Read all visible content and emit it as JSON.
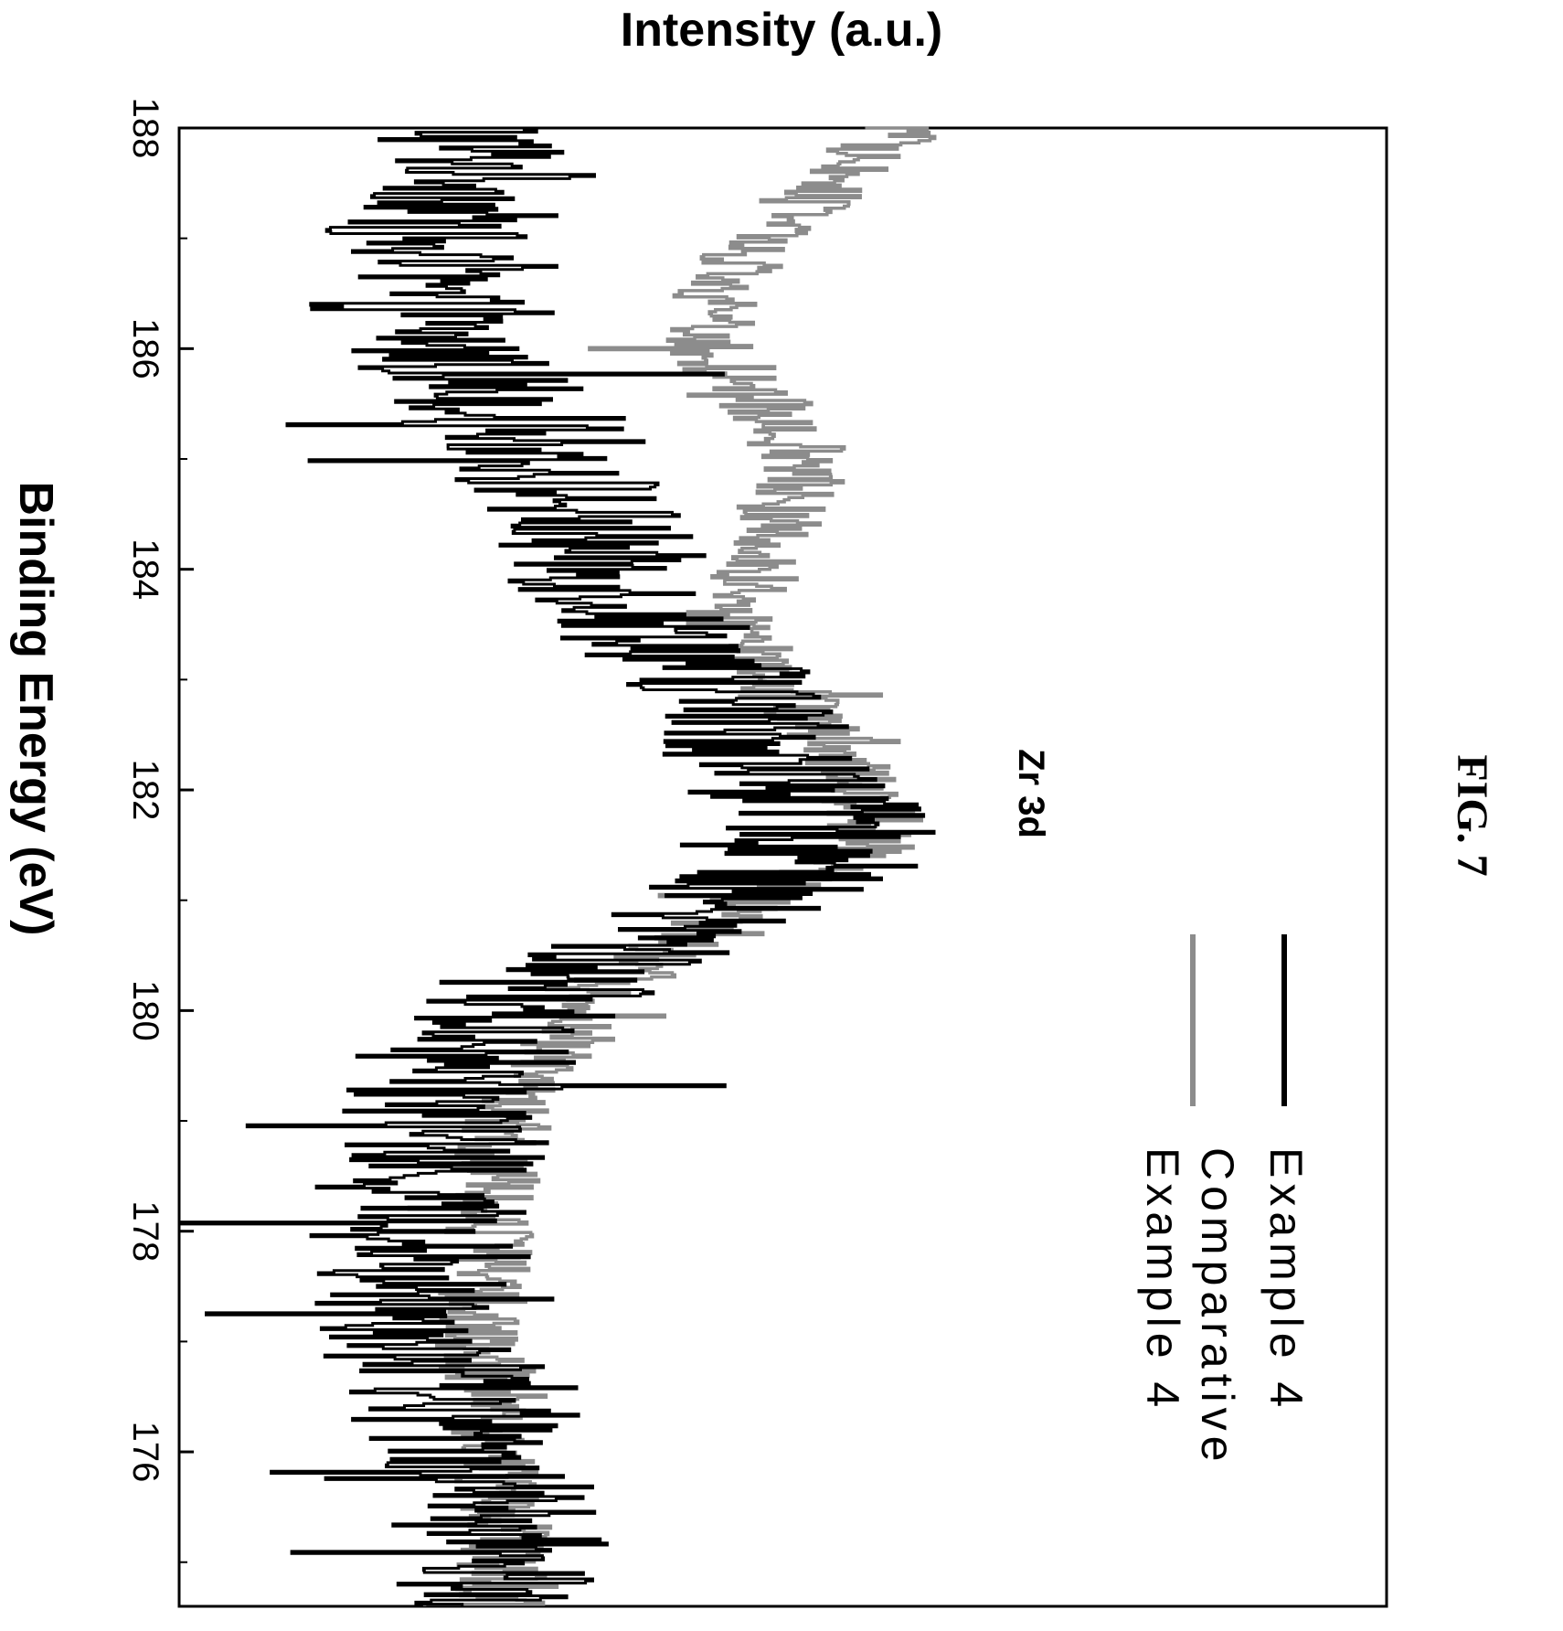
{
  "figure_label": "FIG. 7",
  "chart_data": {
    "type": "line",
    "title": "",
    "annotation": "Zr 3d",
    "xlabel": "Binding Energy (eV)",
    "ylabel": "Intensity (a.u.)",
    "orientation": "rotated 90° clockwise (binding energy runs top to bottom, intensity increases to the right)",
    "xlim": [
      188,
      174.6
    ],
    "x_ticks": [
      188,
      186,
      184,
      182,
      180,
      178,
      176
    ],
    "x_tick_labels": [
      "188",
      "186",
      "184",
      "182",
      "180",
      "178",
      "176"
    ],
    "ylim": [
      0,
      100
    ],
    "y_ticks": [],
    "grid": false,
    "legend": {
      "placement": "bottom-right",
      "entries": [
        "Example 4",
        "Comparative Example 4"
      ]
    },
    "series": [
      {
        "name": "Example 4",
        "color": "#000000",
        "x": [
          188.0,
          187.5,
          187.0,
          186.5,
          186.0,
          185.5,
          185.0,
          184.5,
          184.0,
          183.5,
          183.0,
          182.5,
          182.0,
          181.5,
          181.0,
          180.5,
          180.0,
          179.5,
          179.0,
          178.5,
          178.0,
          177.5,
          177.0,
          176.5,
          176.0,
          175.5,
          175.0,
          174.6
        ],
        "y": [
          24,
          26,
          20,
          19,
          22,
          27,
          31,
          33,
          35,
          39,
          45,
          48,
          51,
          55,
          46,
          37,
          28,
          24,
          22,
          21,
          20,
          19,
          21,
          22,
          25,
          26,
          27,
          27
        ]
      },
      {
        "name": "Comparative Example 4",
        "color": "#8c8c8c",
        "x": [
          188.0,
          187.5,
          187.0,
          186.5,
          186.0,
          185.5,
          185.0,
          184.5,
          184.0,
          183.5,
          183.0,
          182.5,
          182.0,
          181.5,
          181.0,
          180.5,
          180.0,
          179.5,
          179.0,
          178.5,
          178.0,
          177.5,
          177.0,
          176.5,
          176.0,
          175.5,
          175.0,
          174.6
        ],
        "y": [
          60,
          54,
          48,
          44,
          44,
          48,
          52,
          50,
          47,
          45,
          49,
          53,
          57,
          58,
          47,
          40,
          33,
          30,
          27,
          26,
          26,
          25,
          25,
          26,
          26,
          27,
          27,
          27
        ]
      }
    ]
  }
}
